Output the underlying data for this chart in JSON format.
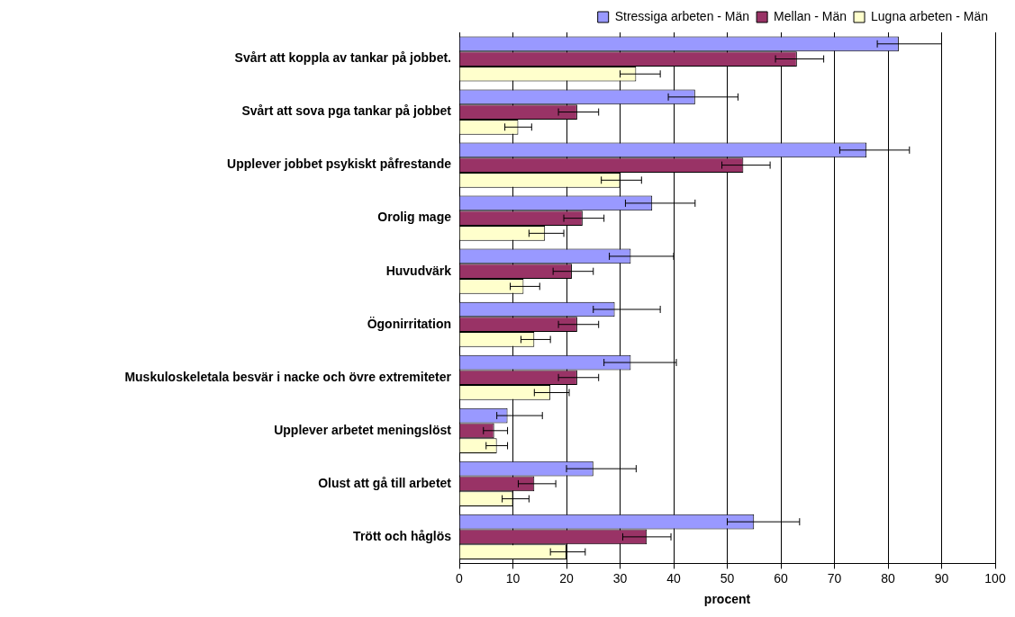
{
  "chart_data": {
    "type": "bar",
    "orientation": "horizontal",
    "xlabel": "procent",
    "categories": [
      "Svårt att koppla av tankar på jobbet.",
      "Svårt att sova pga tankar på jobbet",
      "Upplever jobbet psykiskt påfrestande",
      "Orolig mage",
      "Huvudvärk",
      "Ögonirritation",
      "Muskuloskeletala besvär i nacke och övre extremiteter",
      "Upplever arbetet meningslöst",
      "Olust att gå till arbetet",
      "Trött och håglös"
    ],
    "series": [
      {
        "name": "Stressiga arbeten - Män",
        "color": "#9999ff",
        "values": [
          82,
          44,
          76,
          36,
          32,
          29,
          32,
          9,
          25,
          55
        ],
        "errors": [
          [
            78,
            90
          ],
          [
            39,
            52
          ],
          [
            71,
            84
          ],
          [
            31,
            44
          ],
          [
            28,
            40
          ],
          [
            25,
            37.5
          ],
          [
            27,
            40.5
          ],
          [
            7,
            15.5
          ],
          [
            20,
            33
          ],
          [
            50,
            63.5
          ]
        ]
      },
      {
        "name": "Mellan - Män",
        "color": "#993366",
        "values": [
          63,
          22,
          53,
          23,
          21,
          22,
          22,
          6.5,
          14,
          35
        ],
        "errors": [
          [
            59,
            68
          ],
          [
            18.5,
            26
          ],
          [
            49,
            58
          ],
          [
            19.5,
            27
          ],
          [
            17.5,
            25
          ],
          [
            18.5,
            26
          ],
          [
            18.5,
            26
          ],
          [
            4.5,
            9
          ],
          [
            11,
            18
          ],
          [
            30.5,
            39.5
          ]
        ]
      },
      {
        "name": "Lugna arbeten - Män",
        "color": "#ffffcc",
        "values": [
          33,
          11,
          30,
          16,
          12,
          14,
          17,
          7,
          10,
          20
        ],
        "errors": [
          [
            30,
            37.5
          ],
          [
            8.5,
            13.5
          ],
          [
            26.5,
            34
          ],
          [
            13,
            19.5
          ],
          [
            9.5,
            15
          ],
          [
            11.5,
            17
          ],
          [
            14,
            20.5
          ],
          [
            5,
            9
          ],
          [
            8,
            13
          ],
          [
            17,
            23.5
          ]
        ]
      }
    ],
    "xlim": [
      0,
      100
    ],
    "xticks": [
      0,
      10,
      20,
      30,
      40,
      50,
      60,
      70,
      80,
      90,
      100
    ],
    "grid": "x",
    "legend": "top right"
  }
}
